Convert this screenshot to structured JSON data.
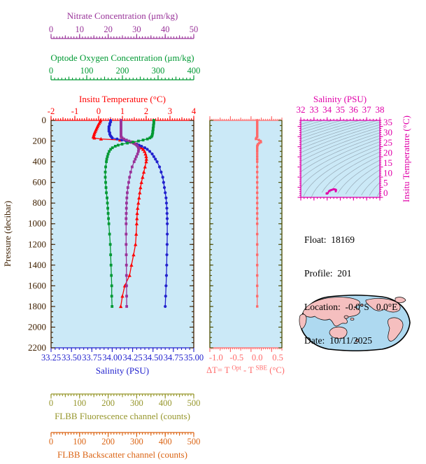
{
  "colors": {
    "nitrate": "#993399",
    "oxygen": "#009933",
    "temperature": "#FF0000",
    "salinity": "#2222CE",
    "pressure_axis": "#3F2000",
    "fluorescence": "#96962B",
    "backscatter": "#DB6414",
    "delta_t": "#FF6A6A",
    "delta_axis_sides": "#4C4C00",
    "ts_frame": "#E000A8",
    "plot_background": "#CBE9F7",
    "contour": "#8E9FAB",
    "map_ocean": "#AED9F0",
    "map_land": "#F5BFBF",
    "text": "#000000"
  },
  "info": {
    "lines": [
      "Float:  18169",
      "Profile:  201",
      "Location:  -0.0°S   0.0°E",
      "Date:  10/11/2025"
    ]
  },
  "chart_data": [
    {
      "id": "profile",
      "type": "line",
      "description": "Vertical float profiles of temperature, salinity, nitrate and oxygen versus pressure",
      "y_axis": {
        "label": "Pressure (decibar)",
        "min": 0,
        "max": 2200,
        "tick_labels": [
          "0",
          "200",
          "400",
          "600",
          "800",
          "1000",
          "1200",
          "1400",
          "1600",
          "1800",
          "2000",
          "2200"
        ]
      },
      "x_axes": [
        {
          "id": "nitrate",
          "label": "Nitrate Concentration (μm/kg)",
          "min": 0,
          "max": 50,
          "tick_labels": [
            "0",
            "10",
            "20",
            "30",
            "40",
            "50"
          ]
        },
        {
          "id": "oxygen",
          "label": "Optode Oxygen Concentration (μm/kg)",
          "min": 0,
          "max": 400,
          "tick_labels": [
            "0",
            "100",
            "200",
            "300",
            "400"
          ]
        },
        {
          "id": "temperature",
          "label": "Insitu Temperature (°C)",
          "min": -2,
          "max": 4,
          "tick_labels": [
            "-2",
            "-1",
            "0",
            "1",
            "2",
            "3",
            "4"
          ]
        },
        {
          "id": "salinity",
          "label": "Salinity (PSU)",
          "min": 33.25,
          "max": 35,
          "tick_labels": [
            "33.25",
            "33.50",
            "33.75",
            "34.00",
            "34.25",
            "34.50",
            "34.75",
            "35.00"
          ]
        },
        {
          "id": "fluorescence",
          "label": "FLBB Fluorescence channel (counts)",
          "min": 0,
          "max": 500,
          "tick_labels": [
            "0",
            "100",
            "200",
            "300",
            "400",
            "500"
          ]
        },
        {
          "id": "backscatter",
          "label": "FLBB Backscatter channel (counts)",
          "min": 0,
          "max": 500,
          "tick_labels": [
            "0",
            "100",
            "200",
            "300",
            "400",
            "500"
          ]
        }
      ],
      "pressure": [
        0,
        15,
        30,
        45,
        60,
        75,
        90,
        105,
        120,
        135,
        150,
        160,
        170,
        180,
        190,
        200,
        210,
        220,
        230,
        240,
        250,
        265,
        280,
        300,
        325,
        350,
        375,
        400,
        450,
        500,
        550,
        600,
        650,
        700,
        750,
        800,
        850,
        900,
        950,
        1000,
        1100,
        1200,
        1300,
        1400,
        1500,
        1600,
        1700,
        1800
      ],
      "series": [
        {
          "name": "Insitu Temperature",
          "axis": "temperature",
          "marker": "triangle",
          "values": [
            0.08,
            0.06,
            0.02,
            -0.02,
            -0.05,
            -0.08,
            -0.11,
            -0.14,
            -0.17,
            -0.19,
            -0.21,
            -0.22,
            -0.18,
            0.1,
            0.9,
            1.2,
            1.4,
            1.52,
            1.6,
            1.66,
            1.72,
            1.8,
            1.87,
            1.93,
            1.97,
            2.0,
            2.01,
            2.0,
            1.95,
            1.9,
            1.85,
            1.8,
            1.76,
            1.73,
            1.7,
            1.67,
            1.64,
            1.62,
            1.61,
            1.6,
            1.58,
            1.55,
            1.47,
            1.38,
            1.3,
            1.1,
            1.0,
            0.93
          ]
        },
        {
          "name": "Salinity",
          "axis": "salinity",
          "marker": "circle",
          "values": [
            33.98,
            33.98,
            33.97,
            33.97,
            33.96,
            33.96,
            33.96,
            33.96,
            33.97,
            33.97,
            33.98,
            33.99,
            34.0,
            34.06,
            34.12,
            34.17,
            34.22,
            34.26,
            34.3,
            34.33,
            34.36,
            34.4,
            34.43,
            34.46,
            34.49,
            34.51,
            34.53,
            34.55,
            34.58,
            34.6,
            34.62,
            34.63,
            34.64,
            34.65,
            34.66,
            34.665,
            34.67,
            34.672,
            34.674,
            34.675,
            34.675,
            34.673,
            34.67,
            34.668,
            34.665,
            34.66,
            34.655,
            34.65
          ]
        },
        {
          "name": "Nitrate",
          "axis": "nitrate",
          "marker": "square",
          "values": [
            24.5,
            24.5,
            24.5,
            24.5,
            24.5,
            24.5,
            24.5,
            24.5,
            24.5,
            24.5,
            24.5,
            24.6,
            24.9,
            25.5,
            26.4,
            27.3,
            28.2,
            28.9,
            29.5,
            30.0,
            30.3,
            30.6,
            30.7,
            30.6,
            30.3,
            29.9,
            29.5,
            29.1,
            28.4,
            27.9,
            27.5,
            27.2,
            26.9,
            26.7,
            26.55,
            26.45,
            26.4,
            26.35,
            26.3,
            26.3,
            26.3,
            26.3,
            26.35,
            26.4,
            26.42,
            26.45,
            26.48,
            26.5
          ]
        },
        {
          "name": "Optode Oxygen",
          "axis": "oxygen",
          "marker": "square",
          "values": [
            288,
            288,
            288,
            287,
            287,
            286,
            286,
            285,
            285,
            284,
            283,
            281,
            277,
            270,
            258,
            245,
            230,
            214,
            199,
            188,
            180,
            172,
            167,
            163,
            160,
            158,
            156,
            155,
            153,
            152,
            152,
            153,
            154,
            155,
            157,
            158,
            159,
            160,
            161,
            162,
            164,
            166,
            167,
            168,
            169,
            170,
            170,
            171
          ]
        }
      ]
    },
    {
      "id": "delta_t",
      "type": "line",
      "description": "Difference between optode and SBE temperature versus pressure",
      "x_axis": {
        "label_parts": {
          "pre": "ΔT= T",
          "sup1": "Opt",
          "mid": " - T",
          "sup2": "SBE",
          "post": " (°C)"
        },
        "min": -1.15,
        "max": 0.6,
        "tick_labels": [
          "-1.0",
          "-0.5",
          "0.0",
          "0.5"
        ]
      },
      "values": [
        0,
        0,
        0,
        0,
        0,
        0,
        0,
        0,
        0,
        0,
        0,
        0,
        -0.02,
        -0.03,
        0.04,
        0.08,
        0.09,
        0.05,
        0.02,
        0.01,
        0,
        0,
        0,
        0,
        0,
        0,
        0,
        0,
        0,
        0,
        0,
        0,
        0,
        0,
        0,
        0,
        0,
        0,
        0,
        0,
        0,
        0,
        0,
        0,
        0,
        0,
        0,
        0
      ]
    },
    {
      "id": "ts_diagram",
      "type": "scatter",
      "description": "Temperature-salinity curve of this profile drawn over potential-density contours",
      "x_axis": {
        "label": "Salinity (PSU)",
        "min": 32,
        "max": 38,
        "tick_labels": [
          "32",
          "33",
          "34",
          "35",
          "36",
          "37",
          "38"
        ]
      },
      "y_axis": {
        "label": "Insitu Temperature (°C)",
        "min": -2,
        "max": 36,
        "tick_labels": [
          "0",
          "5",
          "10",
          "15",
          "20",
          "25",
          "30",
          "35"
        ]
      }
    }
  ]
}
